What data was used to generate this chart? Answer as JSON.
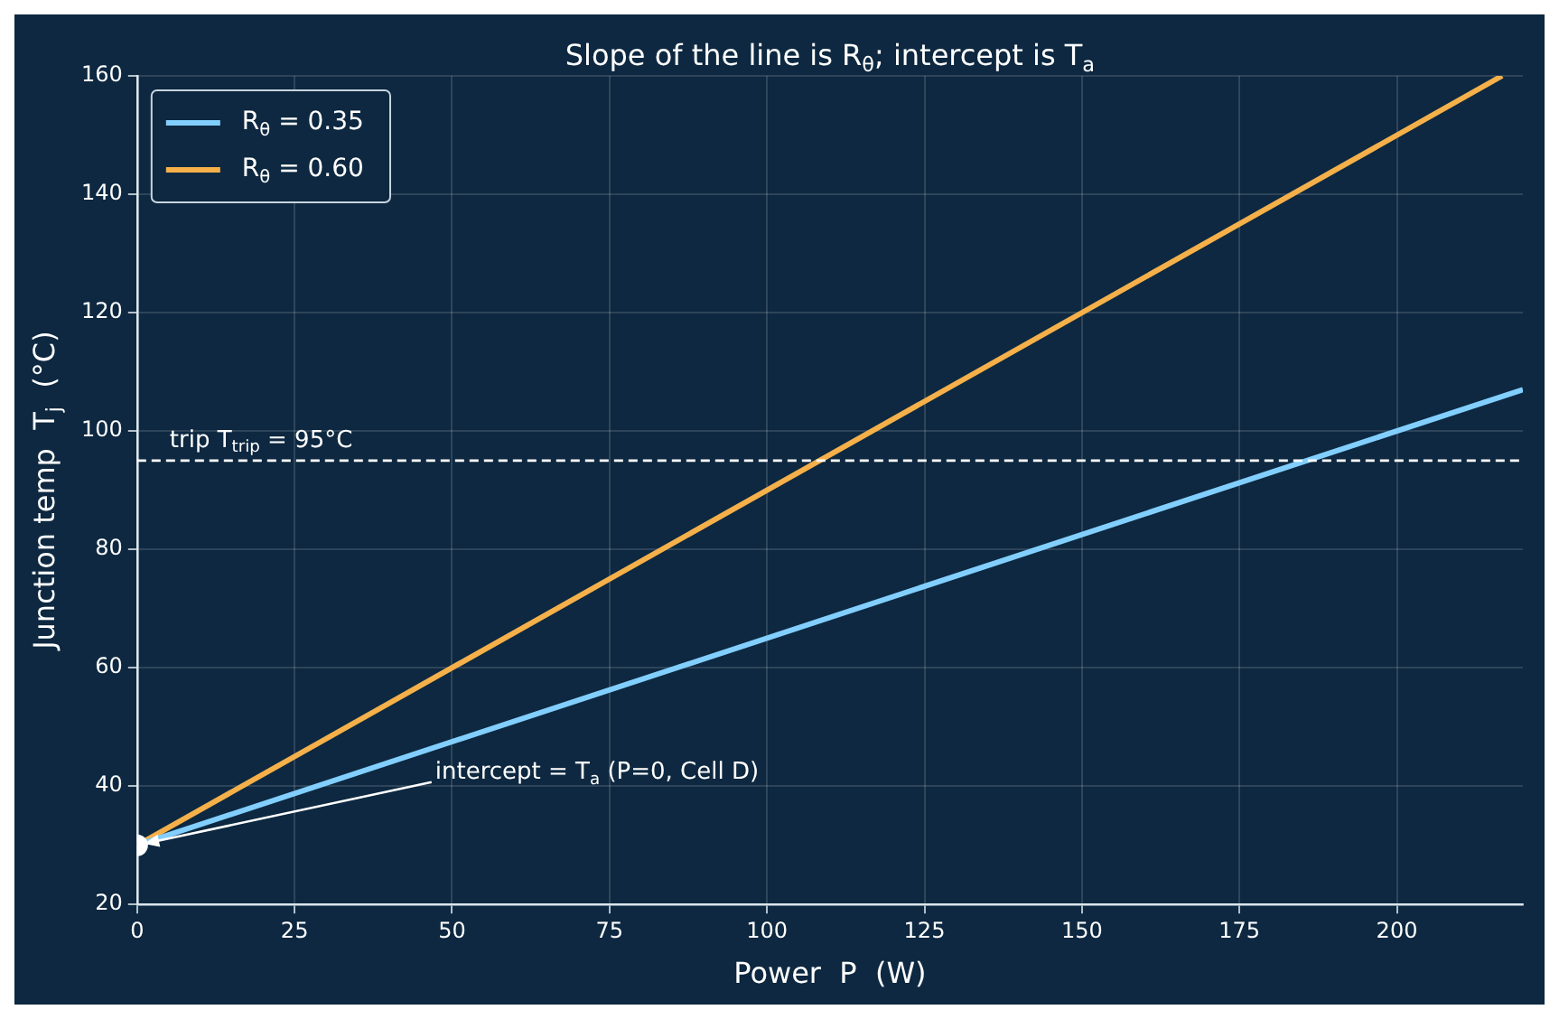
{
  "chart_data": {
    "type": "line",
    "title": "Slope of the line is R$_{θ}$; intercept is T$_{a}$",
    "xlabel": "Power  P  (W)",
    "ylabel": "Junction temp  T$_{j}$  (°C)",
    "xlim": [
      0,
      220
    ],
    "ylim": [
      20,
      160
    ],
    "xticks": [
      0,
      25,
      50,
      75,
      100,
      125,
      150,
      175,
      200
    ],
    "yticks": [
      20,
      40,
      60,
      80,
      100,
      120,
      140,
      160
    ],
    "grid": true,
    "legend": "top left",
    "series": [
      {
        "name": "R$_{θ}$ = 0.35",
        "color": "#82cfff",
        "x": [
          0,
          220
        ],
        "values": [
          30,
          107
        ]
      },
      {
        "name": "R$_{θ}$ = 0.60",
        "color": "#f5b04a",
        "x": [
          0,
          216.7
        ],
        "values": [
          30,
          160
        ]
      },
      {
        "type": "scatter",
        "marker": "circle",
        "color": "#ffffff",
        "x": [
          0
        ],
        "values": [
          30
        ]
      }
    ],
    "ref_lines": [
      {
        "axis": "y",
        "value": 95,
        "label": "trip T$_{trip}$ = 95°C",
        "color": "#ffffff",
        "line_style": "dashed"
      }
    ],
    "annotations": [
      {
        "text": "intercept = T$_{a}$ (P=0, Cell D)",
        "x": 0,
        "y": 30
      }
    ]
  }
}
